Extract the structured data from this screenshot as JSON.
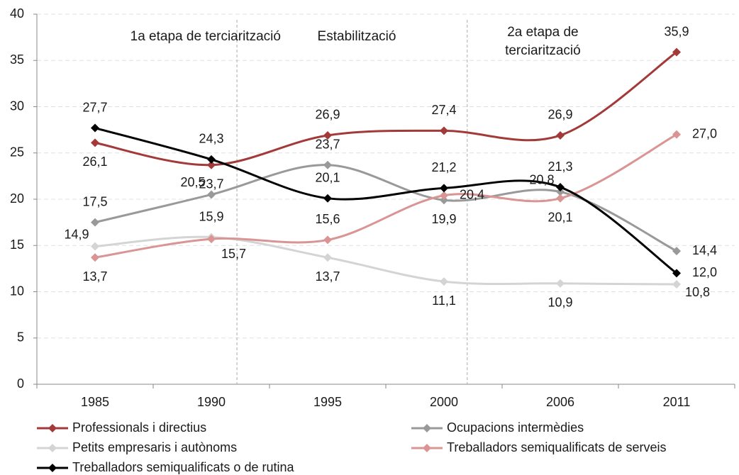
{
  "chart_data": {
    "type": "line",
    "categories": [
      "1985",
      "1990",
      "1995",
      "2000",
      "2006",
      "2011"
    ],
    "ylim": [
      0,
      40
    ],
    "yticks": [
      0,
      5,
      10,
      15,
      20,
      25,
      30,
      35,
      40
    ],
    "grid": true,
    "annotations": [
      [
        "1a etapa de terciarització"
      ],
      [
        "Estabilització"
      ],
      [
        "2a etapa de",
        "terciarització"
      ]
    ],
    "series": [
      {
        "name": "Professionals i directius",
        "color": "#a33a3a",
        "values": [
          26.1,
          23.7,
          26.9,
          27.4,
          26.9,
          35.9
        ],
        "value_labels": [
          "26,1",
          "23,7",
          "26,9",
          "27,4",
          "26,9",
          "35,9"
        ]
      },
      {
        "name": "Ocupacions intermèdies",
        "color": "#999999",
        "values": [
          17.5,
          20.5,
          23.7,
          19.9,
          20.8,
          14.4
        ],
        "value_labels": [
          "17,5",
          "20,5",
          "23,7",
          "19,9",
          "20,8",
          "14,4"
        ]
      },
      {
        "name": "Petits empresaris i autònoms",
        "color": "#d4d4d4",
        "values": [
          14.9,
          15.9,
          13.7,
          11.1,
          10.9,
          10.8
        ],
        "value_labels": [
          "14,9",
          "15,9",
          "13,7",
          "11,1",
          "10,9",
          "10,8"
        ]
      },
      {
        "name": "Treballadors semiqualificats de serveis",
        "color": "#d99494",
        "values": [
          13.7,
          15.7,
          15.6,
          20.4,
          20.1,
          27.0
        ],
        "value_labels": [
          "13,7",
          "15,7",
          "15,6",
          "20,4",
          "20,1",
          "27,0"
        ]
      },
      {
        "name": "Treballadors semiqualificats o de rutina",
        "color": "#000000",
        "values": [
          27.7,
          24.3,
          20.1,
          21.2,
          21.3,
          12.0
        ],
        "value_labels": [
          "27,7",
          "24,3",
          "20,1",
          "21,2",
          "21,3",
          "12,0"
        ]
      }
    ]
  }
}
